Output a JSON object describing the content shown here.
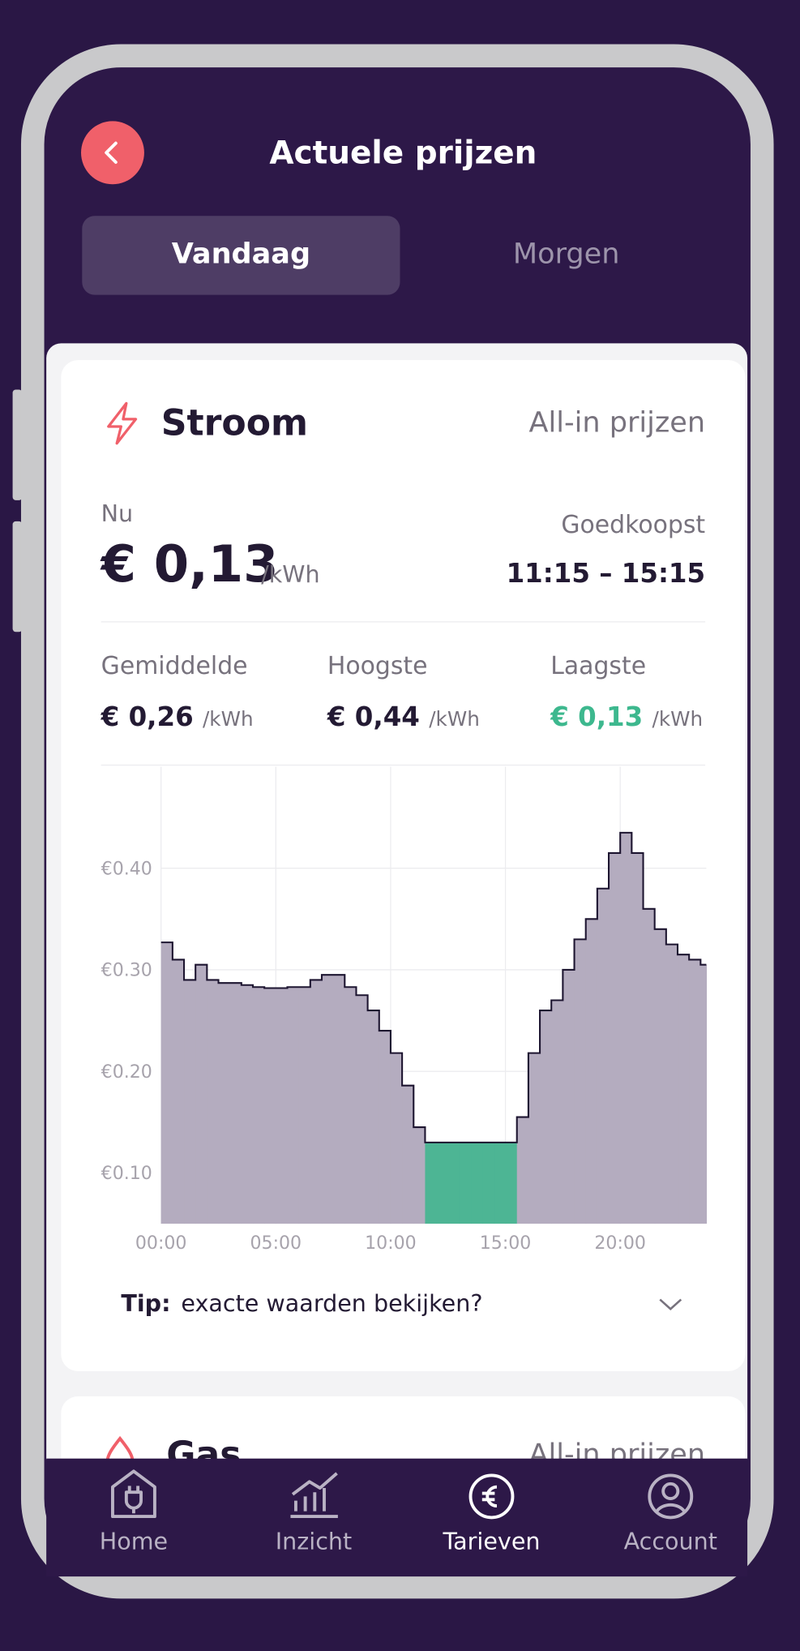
{
  "header": {
    "title": "Actuele prijzen"
  },
  "tabs": [
    "Vandaag",
    "Morgen"
  ],
  "stroom": {
    "title": "Stroom",
    "subtitle": "All-in prijzen",
    "now_label": "Nu",
    "now_value": "€ 0,13",
    "now_unit": "/kWh",
    "cheapest_label": "Goedkoopst",
    "cheapest_value": "11:15 – 15:15",
    "stats": [
      {
        "label": "Gemiddelde",
        "value": "€ 0,26",
        "unit": "/kWh"
      },
      {
        "label": "Hoogste",
        "value": "€ 0,44",
        "unit": "/kWh"
      },
      {
        "label": "Laagste",
        "value": "€ 0,13",
        "unit": "/kWh"
      }
    ],
    "tip_label": "Tip:",
    "tip_text": "exacte waarden bekijken?"
  },
  "gas": {
    "title": "Gas",
    "subtitle": "All-in prijzen"
  },
  "nav": [
    "Home",
    "Inzicht",
    "Tarieven",
    "Account"
  ],
  "chart_data": {
    "type": "step-area",
    "color": "#b4acbf",
    "line_color": "#1d1530",
    "highlight_color": "#4db594",
    "grid": true,
    "x": [
      0,
      0.5,
      1,
      1.5,
      2,
      2.5,
      3,
      3.5,
      4,
      4.5,
      5,
      5.5,
      6,
      6.5,
      7,
      7.5,
      8,
      8.5,
      9,
      9.5,
      10,
      10.5,
      11,
      11.5,
      12,
      12.5,
      13,
      13.5,
      14,
      14.5,
      15,
      15.5,
      16,
      16.5,
      17,
      17.5,
      18,
      18.5,
      19,
      19.5,
      20,
      20.5,
      21,
      21.5,
      22,
      22.5,
      23,
      23.5
    ],
    "values": [
      0.327,
      0.31,
      0.29,
      0.305,
      0.29,
      0.287,
      0.287,
      0.285,
      0.283,
      0.282,
      0.282,
      0.283,
      0.283,
      0.29,
      0.295,
      0.295,
      0.283,
      0.275,
      0.26,
      0.24,
      0.218,
      0.186,
      0.145,
      0.13,
      0.13,
      0.13,
      0.13,
      0.13,
      0.13,
      0.13,
      0.13,
      0.155,
      0.218,
      0.26,
      0.27,
      0.3,
      0.33,
      0.35,
      0.38,
      0.415,
      0.435,
      0.415,
      0.36,
      0.34,
      0.325,
      0.315,
      0.31,
      0.305
    ],
    "xlim": [
      0,
      23.75
    ],
    "ylim": [
      0.05,
      0.5
    ],
    "xticks": [
      {
        "value": 0,
        "label": "00:00"
      },
      {
        "value": 5,
        "label": "05:00"
      },
      {
        "value": 10,
        "label": "10:00"
      },
      {
        "value": 15,
        "label": "15:00"
      },
      {
        "value": 20,
        "label": "20:00"
      }
    ],
    "yticks": [
      {
        "value": 0.1,
        "label": "€0.10"
      },
      {
        "value": 0.2,
        "label": "€0.20"
      },
      {
        "value": 0.3,
        "label": "€0.30"
      },
      {
        "value": 0.4,
        "label": "€0.40"
      }
    ]
  }
}
